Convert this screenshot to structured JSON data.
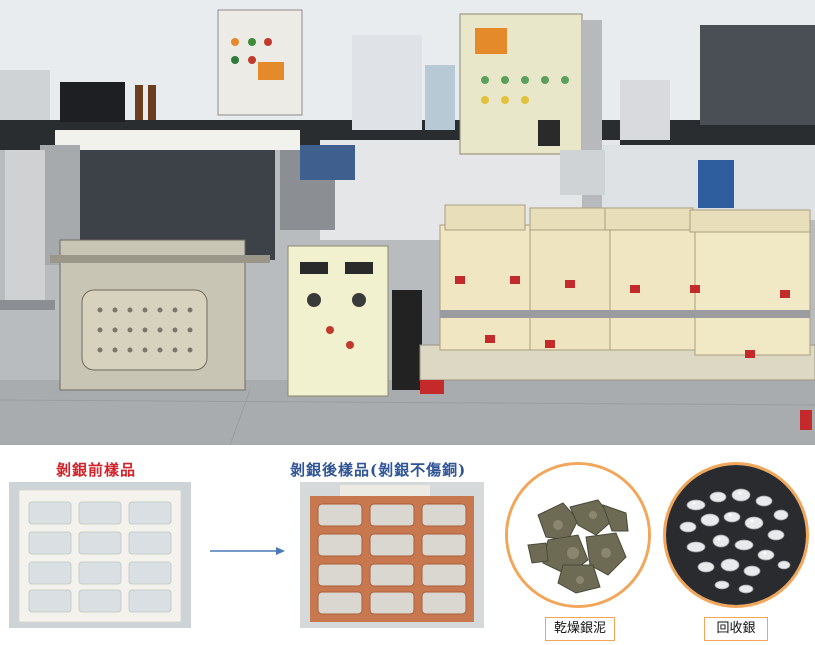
{
  "photo": {
    "description_label": "electroplating silver stripping line"
  },
  "samples": {
    "before_caption": "剝銀前樣品",
    "after_caption": "剝銀後樣品(剝銀不傷銅)"
  },
  "products": {
    "sludge_label": "乾燥銀泥",
    "silver_label": "回收銀"
  },
  "colors": {
    "red_caption": "#d2232a",
    "blue_caption": "#2f5597",
    "orange_border": "#f2a65a",
    "copper": "#c8784e",
    "arrow": "#4a7ab8"
  }
}
